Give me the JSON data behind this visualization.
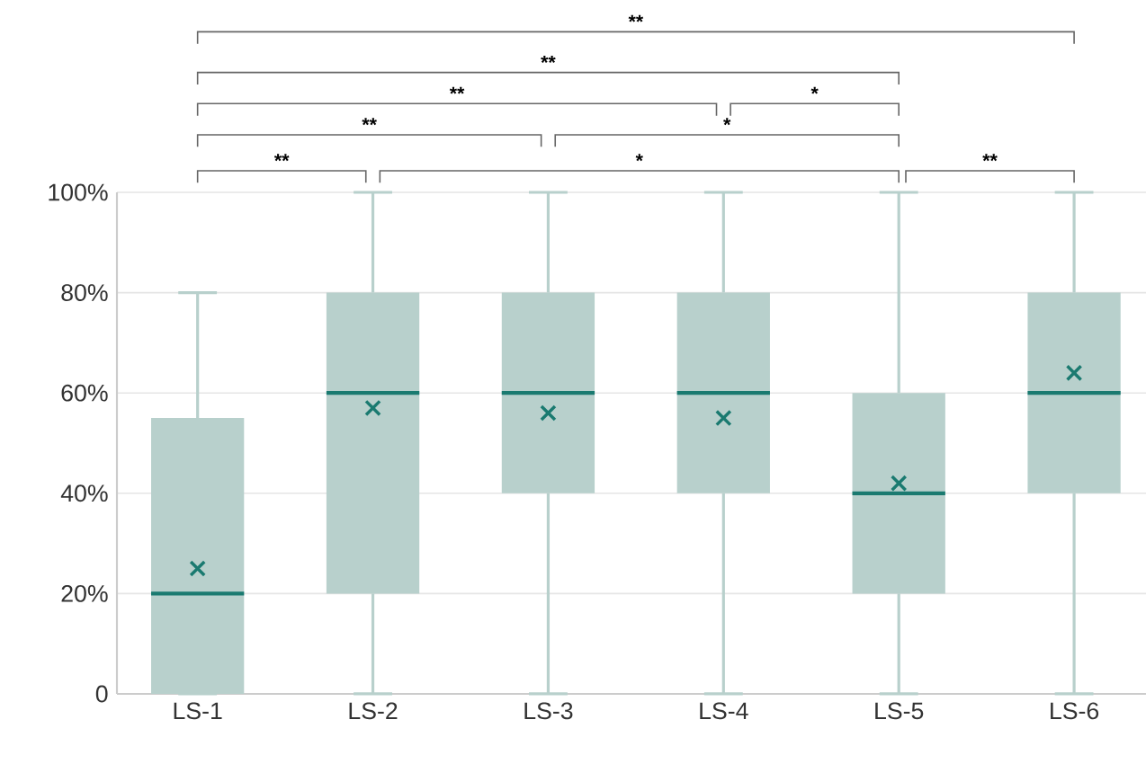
{
  "chart_data": {
    "type": "box",
    "categories": [
      "LS-1",
      "LS-2",
      "LS-3",
      "LS-4",
      "LS-5",
      "LS-6"
    ],
    "boxes": [
      {
        "low": 0,
        "q1": 0,
        "median": 20,
        "q3": 55,
        "high": 80,
        "mean": 25
      },
      {
        "low": 0,
        "q1": 20,
        "median": 60,
        "q3": 80,
        "high": 100,
        "mean": 57
      },
      {
        "low": 0,
        "q1": 40,
        "median": 60,
        "q3": 80,
        "high": 100,
        "mean": 56
      },
      {
        "low": 0,
        "q1": 40,
        "median": 60,
        "q3": 80,
        "high": 100,
        "mean": 55
      },
      {
        "low": 0,
        "q1": 20,
        "median": 40,
        "q3": 60,
        "high": 100,
        "mean": 42
      },
      {
        "low": 0,
        "q1": 40,
        "median": 60,
        "q3": 80,
        "high": 100,
        "mean": 64
      }
    ],
    "color": "#b8d0cc",
    "ylim": [
      0,
      100
    ],
    "yticks": [
      {
        "value": 0,
        "label": "0"
      },
      {
        "value": 20,
        "label": "20%"
      },
      {
        "value": 40,
        "label": "40%"
      },
      {
        "value": 60,
        "label": "60%"
      },
      {
        "value": 80,
        "label": "80%"
      },
      {
        "value": 100,
        "label": "100%"
      }
    ],
    "grid": "y",
    "marker": "cross",
    "annotations": [
      "**",
      "**",
      "**",
      "*",
      "**",
      "*",
      "**",
      "*",
      "**"
    ]
  }
}
